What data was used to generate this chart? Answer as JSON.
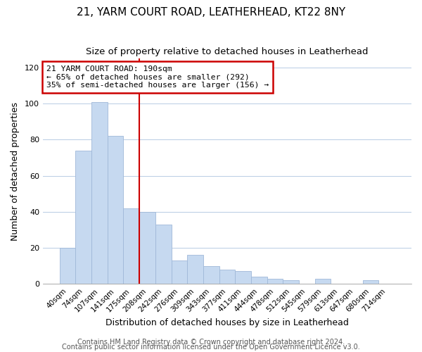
{
  "title": "21, YARM COURT ROAD, LEATHERHEAD, KT22 8NY",
  "subtitle": "Size of property relative to detached houses in Leatherhead",
  "xlabel": "Distribution of detached houses by size in Leatherhead",
  "ylabel": "Number of detached properties",
  "bar_labels": [
    "40sqm",
    "74sqm",
    "107sqm",
    "141sqm",
    "175sqm",
    "208sqm",
    "242sqm",
    "276sqm",
    "309sqm",
    "343sqm",
    "377sqm",
    "411sqm",
    "444sqm",
    "478sqm",
    "512sqm",
    "545sqm",
    "579sqm",
    "613sqm",
    "647sqm",
    "680sqm",
    "714sqm"
  ],
  "bar_values": [
    20,
    74,
    101,
    82,
    42,
    40,
    33,
    13,
    16,
    10,
    8,
    7,
    4,
    3,
    2,
    0,
    3,
    0,
    0,
    2,
    0
  ],
  "bar_color": "#c6d9f0",
  "bar_edge_color": "#a0b8d8",
  "grid_color": "#b8cce4",
  "annotation_text": "21 YARM COURT ROAD: 190sqm\n← 65% of detached houses are smaller (292)\n35% of semi-detached houses are larger (156) →",
  "annotation_box_color": "white",
  "annotation_box_edge_color": "#cc0000",
  "vline_color": "#cc0000",
  "ylim": [
    0,
    125
  ],
  "yticks": [
    0,
    20,
    40,
    60,
    80,
    100,
    120
  ],
  "footer1": "Contains HM Land Registry data © Crown copyright and database right 2024.",
  "footer2": "Contains public sector information licensed under the Open Government Licence v3.0.",
  "background_color": "#ffffff",
  "plot_bg_color": "#ffffff",
  "title_fontsize": 11,
  "subtitle_fontsize": 9.5,
  "annotation_fontsize": 8.2,
  "footer_fontsize": 7.0,
  "tick_label_fontsize": 7.5
}
